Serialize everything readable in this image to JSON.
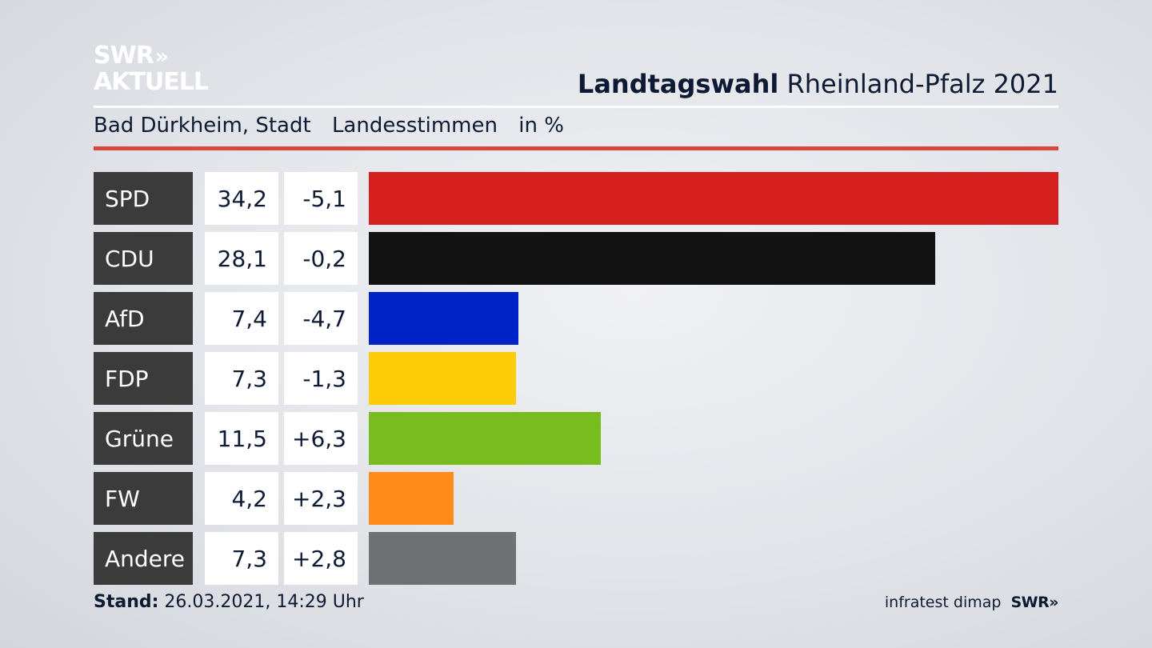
{
  "logo": {
    "line1": "SWR",
    "line1_arrows": "»",
    "line2": "AKTUELL"
  },
  "header": {
    "title_bold": "Landtagswahl",
    "title_rest": "Rheinland-Pfalz 2021",
    "location": "Bad Dürkheim, Stadt",
    "vote_type": "Landesstimmen",
    "unit": "in %"
  },
  "footer": {
    "stand_label": "Stand:",
    "stand_value": "26.03.2021, 14:29 Uhr",
    "source": "infratest dimap",
    "brand": "SWR",
    "brand_arrows": "»"
  },
  "chart_data": {
    "type": "bar",
    "orientation": "horizontal",
    "title": "Landtagswahl Rheinland-Pfalz 2021",
    "subtitle": "Bad Dürkheim, Stadt   Landesstimmen   in %",
    "categories": [
      "SPD",
      "CDU",
      "AfD",
      "FDP",
      "Grüne",
      "FW",
      "Andere"
    ],
    "values": [
      34.2,
      28.1,
      7.4,
      7.3,
      11.5,
      4.2,
      7.3
    ],
    "value_labels": [
      "34,2",
      "28,1",
      "7,4",
      "7,3",
      "11,5",
      "4,2",
      "7,3"
    ],
    "changes": [
      -5.1,
      -0.2,
      -4.7,
      -1.3,
      6.3,
      2.3,
      2.8
    ],
    "change_labels": [
      "-5,1",
      "-0,2",
      "-4,7",
      "-1,3",
      "+6,3",
      "+2,3",
      "+2,8"
    ],
    "colors": [
      "#d61f1f",
      "#121212",
      "#0022c9",
      "#ffcc0a",
      "#79bc1e",
      "#ff8c1a",
      "#707172"
    ],
    "xlim": [
      0,
      34.2
    ],
    "grid": false,
    "legend": "none"
  }
}
